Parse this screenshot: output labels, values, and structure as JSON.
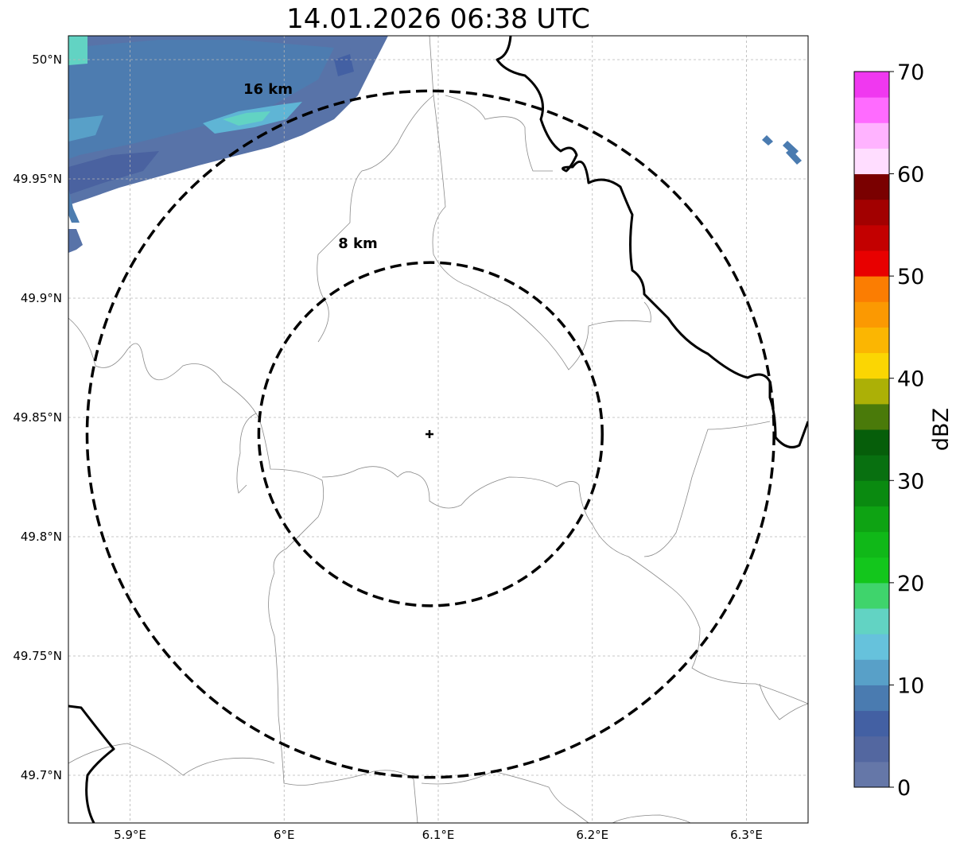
{
  "title": "14.01.2026 06:38 UTC",
  "map": {
    "lon_range": [
      5.86,
      6.34
    ],
    "lat_range": [
      49.68,
      50.01
    ],
    "grid": true,
    "center": {
      "lon": 6.095,
      "lat": 49.843
    },
    "center_marker": "plus-marker",
    "x_ticks": [
      {
        "value": 5.9,
        "label": "5.9°E"
      },
      {
        "value": 6.0,
        "label": "6°E"
      },
      {
        "value": 6.1,
        "label": "6.1°E"
      },
      {
        "value": 6.2,
        "label": "6.2°E"
      },
      {
        "value": 6.3,
        "label": "6.3°E"
      }
    ],
    "y_ticks": [
      {
        "value": 50.0,
        "label": "50°N"
      },
      {
        "value": 49.95,
        "label": "49.95°N"
      },
      {
        "value": 49.9,
        "label": "49.9°N"
      },
      {
        "value": 49.85,
        "label": "49.85°N"
      },
      {
        "value": 49.8,
        "label": "49.8°N"
      },
      {
        "value": 49.75,
        "label": "49.75°N"
      },
      {
        "value": 49.7,
        "label": "49.7°N"
      }
    ],
    "range_rings": [
      {
        "radius_km": 8,
        "label": "8 km"
      },
      {
        "radius_km": 16,
        "label": "16 km"
      }
    ]
  },
  "colorbar": {
    "label": "dBZ",
    "range": [
      0,
      70
    ],
    "ticks": [
      "0",
      "10",
      "20",
      "30",
      "40",
      "50",
      "60",
      "70"
    ],
    "colors": [
      "#6577a8",
      "#5367a0",
      "#4360a3",
      "#4a7bb0",
      "#58a0c8",
      "#66c2dc",
      "#62d3c3",
      "#3fd46c",
      "#13c61c",
      "#10b818",
      "#0ea313",
      "#0a8a10",
      "#087010",
      "#065e0a",
      "#4a7a0a",
      "#acb006",
      "#fbd603",
      "#fbb602",
      "#fb9902",
      "#fb7d02",
      "#e80000",
      "#c30000",
      "#a20000",
      "#7a0000",
      "#ffddff",
      "#ffb3ff",
      "#ff6bff",
      "#f038f0"
    ]
  }
}
